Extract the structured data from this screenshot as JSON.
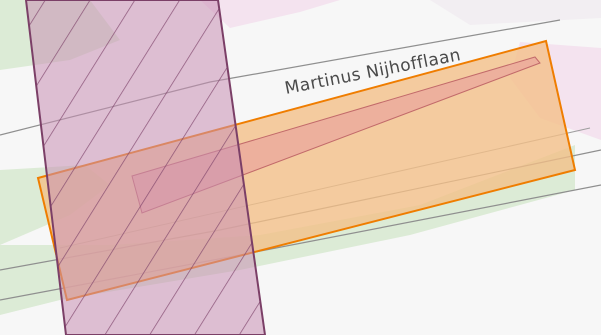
{
  "map": {
    "street_label": "Martinus Nijhofflaan",
    "colors": {
      "background": "#f7f7f7",
      "green_area": "#dcebd6",
      "pink_area": "#f4e3ef",
      "road_line": "#8f8f8f",
      "orange_selection_fill": "#f3bf86",
      "orange_selection_stroke": "#ef7d00",
      "purple_hatched_fill": "#c88fb4",
      "purple_hatched_stroke": "#7b3f67",
      "red_building": "#e89a9a"
    },
    "layers": [
      {
        "name": "green-area",
        "icon": "polygon"
      },
      {
        "name": "pink-area",
        "icon": "polygon"
      },
      {
        "name": "road-centerlines",
        "icon": "line"
      },
      {
        "name": "orange-selection-polygon",
        "icon": "polygon"
      },
      {
        "name": "purple-hatched-zone",
        "icon": "hatched-polygon"
      }
    ]
  }
}
